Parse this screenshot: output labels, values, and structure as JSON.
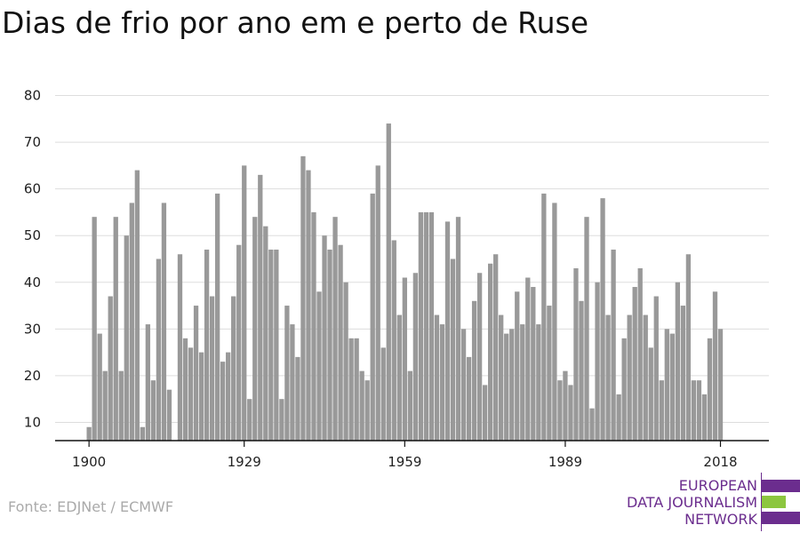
{
  "title": "Dias de frio por ano em e perto de Ruse",
  "source": "Fonte: EDJNet / ECMWF",
  "logo": {
    "lines": [
      "EUROPEAN",
      "DATA JOURNALISM",
      "NETWORK"
    ],
    "colors": {
      "purple": "#6b2d8e",
      "green": "#8cc63f"
    }
  },
  "chart_data": {
    "type": "bar",
    "title": "Dias de frio por ano em e perto de Ruse",
    "xlabel": "",
    "ylabel": "",
    "x_start": 1900,
    "x_ticks": [
      "1900",
      "1929",
      "1959",
      "1989",
      "2018"
    ],
    "y_ticks": [
      "10",
      "20",
      "30",
      "40",
      "50",
      "60",
      "70",
      "80"
    ],
    "ylim": [
      5,
      82
    ],
    "grid": true,
    "bar_color": "#999999",
    "years": [
      1900,
      1901,
      1902,
      1903,
      1904,
      1905,
      1906,
      1907,
      1908,
      1909,
      1910,
      1911,
      1912,
      1913,
      1914,
      1915,
      1916,
      1917,
      1918,
      1919,
      1920,
      1921,
      1922,
      1923,
      1924,
      1925,
      1926,
      1927,
      1928,
      1929,
      1930,
      1931,
      1932,
      1933,
      1934,
      1935,
      1936,
      1937,
      1938,
      1939,
      1940,
      1941,
      1942,
      1943,
      1944,
      1945,
      1946,
      1947,
      1948,
      1949,
      1950,
      1951,
      1952,
      1953,
      1954,
      1955,
      1956,
      1957,
      1958,
      1959,
      1960,
      1961,
      1962,
      1963,
      1964,
      1965,
      1966,
      1967,
      1968,
      1969,
      1970,
      1971,
      1972,
      1973,
      1974,
      1975,
      1976,
      1977,
      1978,
      1979,
      1980,
      1981,
      1982,
      1983,
      1984,
      1985,
      1986,
      1987,
      1988,
      1989,
      1990,
      1991,
      1992,
      1993,
      1994,
      1995,
      1996,
      1997,
      1998,
      1999,
      2000,
      2001,
      2002,
      2003,
      2004,
      2005,
      2006,
      2007,
      2008,
      2009,
      2010,
      2011,
      2012,
      2013,
      2014,
      2015,
      2016,
      2017,
      2018
    ],
    "values": [
      9,
      54,
      29,
      21,
      37,
      54,
      21,
      50,
      57,
      64,
      9,
      31,
      19,
      45,
      57,
      17,
      6,
      46,
      28,
      26,
      35,
      25,
      47,
      37,
      59,
      23,
      25,
      37,
      48,
      65,
      15,
      54,
      63,
      52,
      47,
      47,
      15,
      35,
      31,
      24,
      67,
      64,
      55,
      38,
      50,
      47,
      54,
      48,
      40,
      28,
      28,
      21,
      19,
      59,
      65,
      26,
      74,
      49,
      33,
      41,
      21,
      42,
      55,
      55,
      55,
      33,
      31,
      53,
      45,
      54,
      30,
      24,
      36,
      42,
      18,
      44,
      46,
      33,
      29,
      30,
      38,
      31,
      41,
      39,
      31,
      59,
      35,
      57,
      19,
      21,
      18,
      43,
      36,
      54,
      13,
      40,
      58,
      33,
      47,
      16,
      28,
      33,
      39,
      43,
      33,
      26,
      37,
      19,
      30,
      29,
      40,
      35,
      46,
      19,
      19,
      16,
      28,
      38,
      30
    ]
  }
}
